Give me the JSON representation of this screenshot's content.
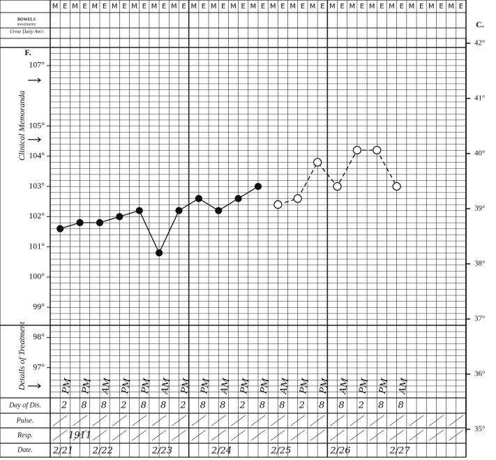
{
  "chart_data": {
    "type": "line",
    "categories": [
      "M",
      "E",
      "M",
      "E",
      "M",
      "E",
      "M",
      "E",
      "M",
      "E",
      "M",
      "E",
      "M",
      "E",
      "M",
      "E",
      "M",
      "E",
      "M",
      "E",
      "M",
      "E",
      "M",
      "E",
      "M",
      "E",
      "M",
      "E",
      "M",
      "E",
      "M",
      "E",
      "M",
      "E",
      "M",
      "E",
      "M",
      "E",
      "M",
      "E",
      "M",
      "E"
    ],
    "series": [
      {
        "color": "#111",
        "style": "solid",
        "marker": "filled",
        "values": [
          null,
          101.6,
          null,
          101.8,
          null,
          101.8,
          null,
          102.0,
          null,
          102.2,
          null,
          100.8,
          null,
          102.2,
          null,
          102.6,
          null,
          102.2,
          null,
          102.6,
          null,
          103.0,
          null,
          null,
          null,
          null,
          null,
          null,
          null,
          null,
          null,
          null,
          null,
          null,
          null,
          null,
          null,
          null,
          null,
          null,
          null,
          null
        ]
      },
      {
        "color": "#111",
        "style": "dashed",
        "marker": "open",
        "values": [
          null,
          null,
          null,
          null,
          null,
          null,
          null,
          null,
          null,
          null,
          null,
          null,
          null,
          null,
          null,
          null,
          null,
          null,
          null,
          null,
          null,
          null,
          null,
          102.4,
          null,
          102.6,
          null,
          103.8,
          null,
          103.0,
          null,
          104.2,
          null,
          104.2,
          null,
          103.0,
          null,
          null,
          null,
          null,
          null,
          null
        ]
      }
    ],
    "ylim": [
      96.0,
      107.6
    ],
    "yticks": [
      {
        "value": 107,
        "label": "107°"
      },
      {
        "value": 105,
        "label": "105°"
      },
      {
        "value": 104,
        "label": "104°"
      },
      {
        "value": 103,
        "label": "103°"
      },
      {
        "value": 102,
        "label": "102°"
      },
      {
        "value": 101,
        "label": "101°"
      },
      {
        "value": 100,
        "label": "100°"
      },
      {
        "value": 99,
        "label": "99°"
      },
      {
        "value": 98,
        "label": "98°"
      },
      {
        "value": 97,
        "label": "97°"
      }
    ],
    "y2lim": [
      35,
      42
    ],
    "y2ticks": [
      {
        "value": 42,
        "label": "42°"
      },
      {
        "value": 41,
        "label": "41°"
      },
      {
        "value": 40,
        "label": "40°"
      },
      {
        "value": 39,
        "label": "39°"
      },
      {
        "value": 38,
        "label": "38°"
      },
      {
        "value": 37,
        "label": "37°"
      },
      {
        "value": 36,
        "label": "36°"
      },
      {
        "value": 35,
        "label": "35°"
      }
    ],
    "y_axis_label": "F.",
    "y2_axis_label": "C.",
    "bowels_label": "BOWELS",
    "bowels_sub_label": "movements",
    "urine_label": "Urine Daily Am't",
    "side_labels": [
      "Clinical Memoranda",
      "Details of Treatment"
    ],
    "row_labels": [
      "Day of Dis.",
      "Pulse.",
      "Resp.",
      "Date."
    ],
    "period_marks": [
      "PM",
      "PM",
      "AM",
      "PM",
      "PM",
      "AM",
      "PM",
      "PM",
      "AM",
      "PM",
      "PM",
      "AM",
      "PM",
      "PM",
      "AM",
      "PM",
      "PM",
      "AM"
    ],
    "hours": [
      "2",
      "8",
      "8",
      "2",
      "8",
      "8",
      "2",
      "8",
      "8",
      "2",
      "8",
      "8",
      "2",
      "8",
      "8",
      "2",
      "8",
      "8"
    ],
    "year": "1911",
    "dates": [
      "2/21",
      "2/22",
      "2/23",
      "2/24",
      "2/25",
      "2/26",
      "2/27"
    ]
  }
}
